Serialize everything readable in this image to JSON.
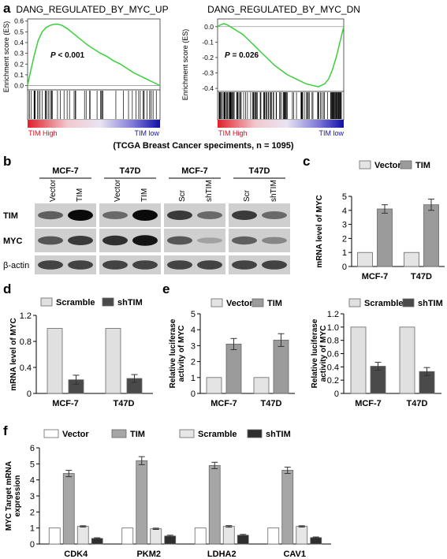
{
  "panels": {
    "a": "a",
    "b": "b",
    "c": "c",
    "d": "d",
    "e": "e",
    "f": "f"
  },
  "gsea": [
    {
      "title": "DANG_REGULATED_BY_MYC_UP",
      "ylabel": "Enrichment score (ES)",
      "pvalue_prefix": "P",
      "pvalue_text": " < 0.001",
      "yticks": [
        "0.6",
        "0.5",
        "0.4",
        "0.3",
        "0.2",
        "0.1",
        "0.0"
      ],
      "high_label": "TIM High",
      "low_label": "TIM low"
    },
    {
      "title": "DANG_REGULATED_BY_MYC_DN",
      "ylabel": "Enrichment score (ES)",
      "pvalue_prefix": "P",
      "pvalue_text": " = 0.026",
      "yticks": [
        "0.0",
        "-0.1",
        "-0.2",
        "-0.3",
        "-0.4"
      ],
      "high_label": "TIM High",
      "low_label": "TIM low"
    }
  ],
  "gsea_caption": "(TCGA Breast Cancer speciments, n = 1095)",
  "blot": {
    "cell_lines": [
      "MCF-7",
      "T47D",
      "MCF-7",
      "T47D"
    ],
    "lanes": [
      "Vector",
      "TIM",
      "Vector",
      "TIM",
      "Scr",
      "shTIM",
      "Scr",
      "shTIM"
    ],
    "rows": [
      "TIM",
      "MYC",
      "β-actin"
    ]
  },
  "chart_data": [
    {
      "panel": "a-left",
      "type": "line",
      "title": "DANG_REGULATED_BY_MYC_UP",
      "ylabel": "Enrichment score (ES)",
      "ylim": [
        -0.04,
        0.62
      ],
      "x": [
        0,
        0.02,
        0.05,
        0.08,
        0.11,
        0.14,
        0.17,
        0.2,
        0.23,
        0.26,
        0.3,
        0.35,
        0.4,
        0.45,
        0.5,
        0.55,
        0.6,
        0.65,
        0.7,
        0.75,
        0.8,
        0.85,
        0.9,
        0.95,
        1.0
      ],
      "values": [
        0,
        0.12,
        0.28,
        0.42,
        0.5,
        0.54,
        0.56,
        0.57,
        0.57,
        0.56,
        0.53,
        0.48,
        0.43,
        0.38,
        0.34,
        0.3,
        0.27,
        0.23,
        0.2,
        0.16,
        0.12,
        0.09,
        0.06,
        0.03,
        0
      ],
      "annotation": "P < 0.001"
    },
    {
      "panel": "a-right",
      "type": "line",
      "title": "DANG_REGULATED_BY_MYC_DN",
      "ylabel": "Enrichment score (ES)",
      "ylim": [
        -0.42,
        0.05
      ],
      "x": [
        0,
        0.02,
        0.05,
        0.08,
        0.12,
        0.16,
        0.2,
        0.25,
        0.3,
        0.35,
        0.4,
        0.45,
        0.5,
        0.55,
        0.6,
        0.65,
        0.7,
        0.75,
        0.8,
        0.85,
        0.88,
        0.91,
        0.94,
        0.97,
        1.0
      ],
      "values": [
        0,
        0.01,
        0.02,
        0.01,
        -0.01,
        -0.03,
        -0.05,
        -0.09,
        -0.13,
        -0.17,
        -0.21,
        -0.25,
        -0.28,
        -0.31,
        -0.33,
        -0.35,
        -0.37,
        -0.38,
        -0.39,
        -0.37,
        -0.34,
        -0.28,
        -0.2,
        -0.1,
        0
      ],
      "annotation": "P = 0.026"
    },
    {
      "panel": "c",
      "type": "bar",
      "categories": [
        "MCF-7",
        "T47D"
      ],
      "series": [
        {
          "name": "Vector",
          "values": [
            1.0,
            1.0
          ],
          "errors": [
            0,
            0
          ],
          "color": "#e4e4e4"
        },
        {
          "name": "TIM",
          "values": [
            4.1,
            4.4
          ],
          "errors": [
            0.3,
            0.4
          ],
          "color": "#9b9b9b"
        }
      ],
      "ylabel": "mRNA level of MYC",
      "ylim": [
        0,
        5
      ],
      "yticks": [
        "0",
        "1",
        "2",
        "3",
        "4",
        "5"
      ]
    },
    {
      "panel": "d",
      "type": "bar",
      "categories": [
        "MCF-7",
        "T47D"
      ],
      "series": [
        {
          "name": "Scramble",
          "values": [
            1.0,
            1.0
          ],
          "errors": [
            0,
            0
          ],
          "color": "#e0e0e0"
        },
        {
          "name": "shTIM",
          "values": [
            0.21,
            0.23
          ],
          "errors": [
            0.07,
            0.06
          ],
          "color": "#4a4a4a"
        }
      ],
      "ylabel": "mRNA level of MYC",
      "ylim": [
        0,
        1.2
      ],
      "yticks": [
        "0",
        "0.4",
        "0.8",
        "1.2"
      ]
    },
    {
      "panel": "e-left",
      "type": "bar",
      "categories": [
        "MCF-7",
        "T47D"
      ],
      "series": [
        {
          "name": "Vector",
          "values": [
            1.0,
            1.0
          ],
          "errors": [
            0,
            0
          ],
          "color": "#e4e4e4"
        },
        {
          "name": "TIM",
          "values": [
            3.1,
            3.35
          ],
          "errors": [
            0.35,
            0.4
          ],
          "color": "#9b9b9b"
        }
      ],
      "ylabel": "Relative luciferase activity of MYC",
      "ylim": [
        0,
        5
      ],
      "yticks": [
        "0",
        "1",
        "2",
        "3",
        "4",
        "5"
      ]
    },
    {
      "panel": "e-right",
      "type": "bar",
      "categories": [
        "MCF-7",
        "T47D"
      ],
      "series": [
        {
          "name": "Scramble",
          "values": [
            1.0,
            1.0
          ],
          "errors": [
            0,
            0
          ],
          "color": "#e0e0e0"
        },
        {
          "name": "shTIM",
          "values": [
            0.41,
            0.33
          ],
          "errors": [
            0.06,
            0.06
          ],
          "color": "#4a4a4a"
        }
      ],
      "ylabel": "Relative luciferase activity of MYC",
      "ylim": [
        0,
        1.2
      ],
      "yticks": [
        "0",
        "0.2",
        "0.4",
        "0.6",
        "0.8",
        "1.0",
        "1.2"
      ]
    },
    {
      "panel": "f",
      "type": "bar",
      "categories": [
        "CDK4",
        "PKM2",
        "LDHA2",
        "CAV1"
      ],
      "series": [
        {
          "name": "Vector",
          "values": [
            1.0,
            1.0,
            1.0,
            1.0
          ],
          "errors": [
            0,
            0,
            0,
            0
          ],
          "color": "#ffffff"
        },
        {
          "name": "TIM",
          "values": [
            4.4,
            5.2,
            4.9,
            4.6
          ],
          "errors": [
            0.2,
            0.25,
            0.2,
            0.2
          ],
          "color": "#a6a6a6"
        },
        {
          "name": "Scramble",
          "values": [
            1.1,
            0.95,
            1.1,
            1.1
          ],
          "errors": [
            0.04,
            0.04,
            0.05,
            0.04
          ],
          "color": "#e6e6e6"
        },
        {
          "name": "shTIM",
          "values": [
            0.35,
            0.5,
            0.55,
            0.4
          ],
          "errors": [
            0.04,
            0.05,
            0.05,
            0.04
          ],
          "color": "#2e2e2e"
        }
      ],
      "ylabel": "MYC Target mRNA expression",
      "ylim": [
        0,
        6
      ],
      "yticks": [
        "0",
        "1",
        "2",
        "3",
        "4",
        "5",
        "6"
      ]
    }
  ]
}
